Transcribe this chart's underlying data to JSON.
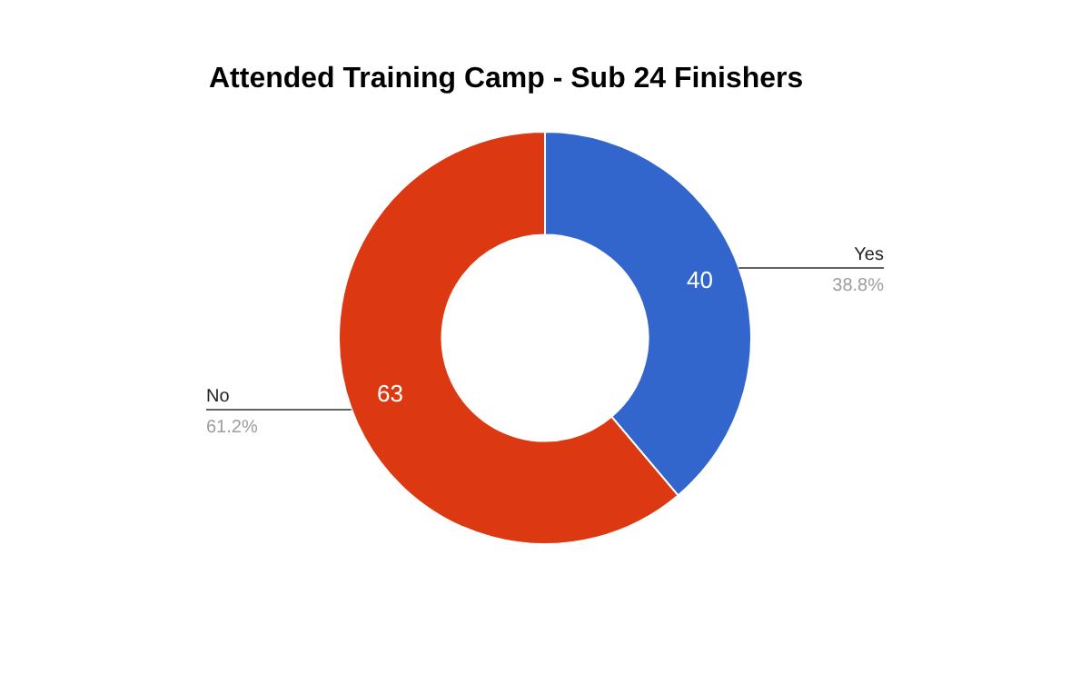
{
  "chart_data": {
    "type": "donut",
    "title": "Attended Training Camp - Sub 24 Finishers",
    "categories": [
      "Yes",
      "No"
    ],
    "values": [
      40,
      63
    ],
    "colors": [
      "#3366cc",
      "#dc3912"
    ],
    "data_labels": true,
    "legend": false,
    "annotations": [
      "38.8%",
      "61.2%"
    ]
  }
}
